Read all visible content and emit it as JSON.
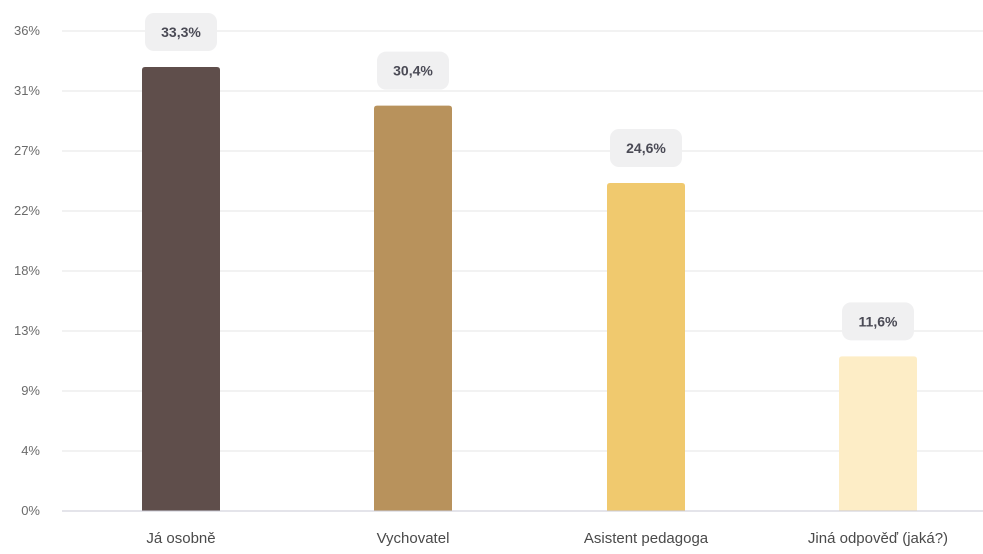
{
  "chart_data": {
    "type": "bar",
    "categories": [
      "Já osobně",
      "Vychovatel",
      "Asistent pedagoga",
      "Jiná odpověď (jaká?)"
    ],
    "values": [
      33.3,
      30.4,
      24.6,
      11.6
    ],
    "value_labels": [
      "33,3%",
      "30,4%",
      "24,6%",
      "11,6%"
    ],
    "colors": [
      "#5f4e4b",
      "#b8925c",
      "#f0c96e",
      "#fdedc6"
    ],
    "y_ticks": [
      0,
      4.5,
      9,
      13.5,
      18,
      22.5,
      27,
      31.5,
      36
    ],
    "y_tick_labels": [
      "0%",
      "4%",
      "9%",
      "13%",
      "18%",
      "22%",
      "27%",
      "31%",
      "36%"
    ],
    "ylim": [
      0,
      36
    ],
    "grid": true,
    "legend": "none",
    "title": "",
    "xlabel": "",
    "ylabel": ""
  }
}
